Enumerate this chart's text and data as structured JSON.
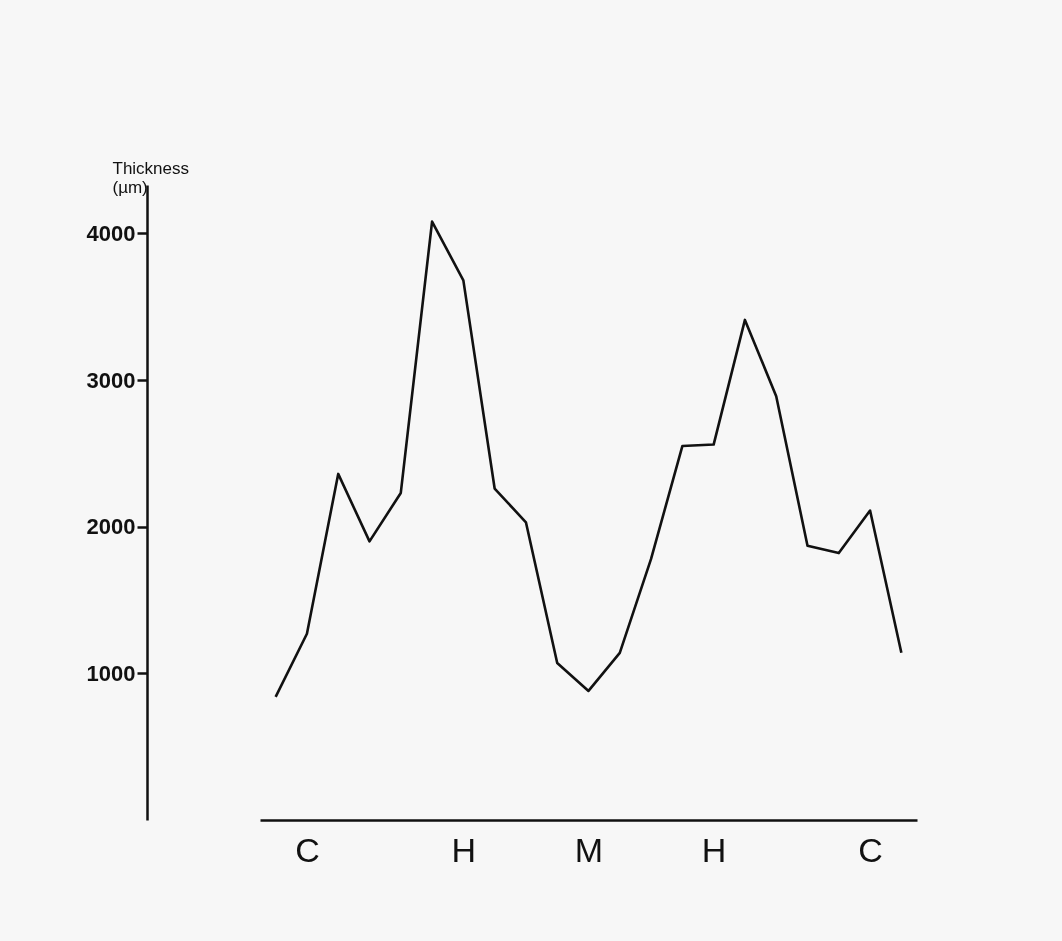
{
  "chart_data": {
    "type": "line",
    "ylabel": "Thickness\n(µm)",
    "categories": [
      null,
      "C",
      null,
      null,
      null,
      null,
      "H",
      null,
      null,
      null,
      "M",
      null,
      null,
      null,
      "H",
      null,
      null,
      null,
      null,
      "C",
      null
    ],
    "series": [
      {
        "color": "#111111",
        "values": [
          840,
          1270,
          2360,
          1900,
          2230,
          4080,
          3680,
          2260,
          2030,
          1070,
          880,
          1140,
          1780,
          2550,
          2560,
          3410,
          2890,
          1870,
          1820,
          2110,
          1140
        ]
      }
    ],
    "ylim": [
      0,
      4330
    ],
    "yticks": [
      1000,
      2000,
      3000,
      4000
    ],
    "grid": false,
    "marker": "none",
    "line_style": "solid"
  }
}
